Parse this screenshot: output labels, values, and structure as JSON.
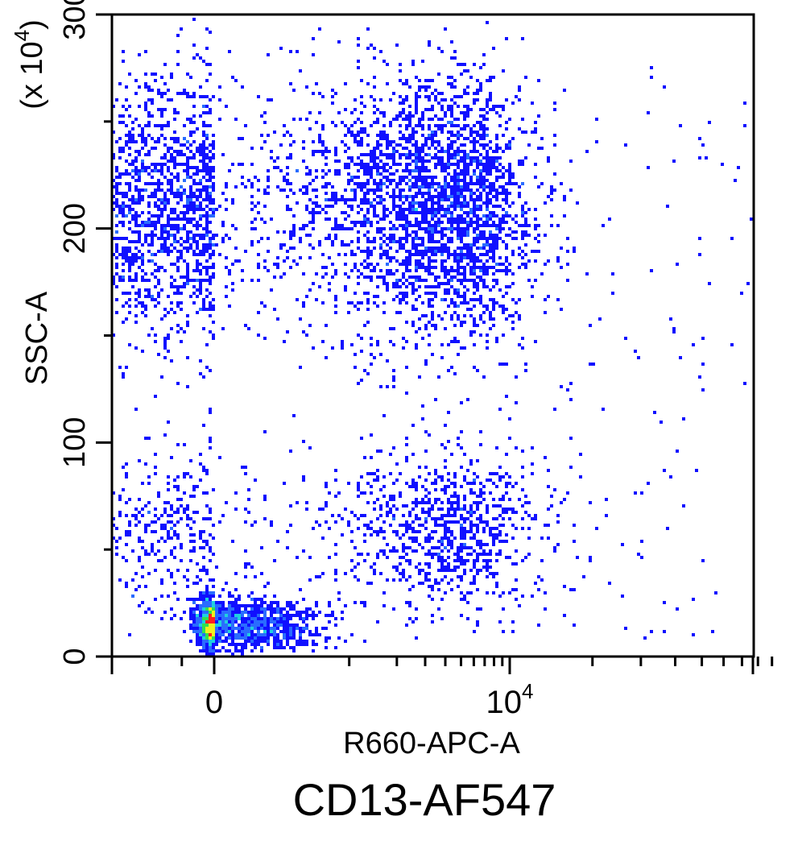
{
  "chart_data": {
    "type": "scatter",
    "title": "",
    "caption": "CD13-AF547",
    "xlabel": "R660-APC-A",
    "ylabel": "SSC-A",
    "y_multiplier_label": "(x 10^4)",
    "y_multiplier": {
      "prefix": "(x 10",
      "exponent": "4",
      "suffix": ")"
    },
    "x_scale": "biexponential",
    "y_scale": "linear",
    "xlim": [
      -3000,
      300000
    ],
    "ylim": [
      0,
      300
    ],
    "yticks": [
      {
        "value": 0,
        "label": "0"
      },
      {
        "value": 100,
        "label": "100"
      },
      {
        "value": 200,
        "label": "200"
      },
      {
        "value": 300,
        "label": "300"
      }
    ],
    "xticks": [
      {
        "value": 0,
        "label": "0"
      },
      {
        "value": 10000,
        "label": "10",
        "exponent": "4"
      }
    ],
    "color_scale": "density (blue → cyan → green → yellow → red)",
    "colors": {
      "low": "#1010ff",
      "mid_low": "#2a6cff",
      "mid": "#20d0e0",
      "mid_high": "#30e050",
      "high": "#f0f020",
      "peak": "#ff2020"
    },
    "populations": [
      {
        "name": "",
        "x_center": 800,
        "x_spread": 4500,
        "y_center": 210,
        "y_spread": 30,
        "count": 5200
      },
      {
        "name": "",
        "x_center": 1500,
        "x_spread": 5000,
        "y_center": 60,
        "y_spread": 18,
        "count": 1400
      },
      {
        "name": "",
        "x_center": 0,
        "x_spread": 250,
        "y_center": 15,
        "y_spread": 6,
        "count": 1700
      }
    ]
  }
}
